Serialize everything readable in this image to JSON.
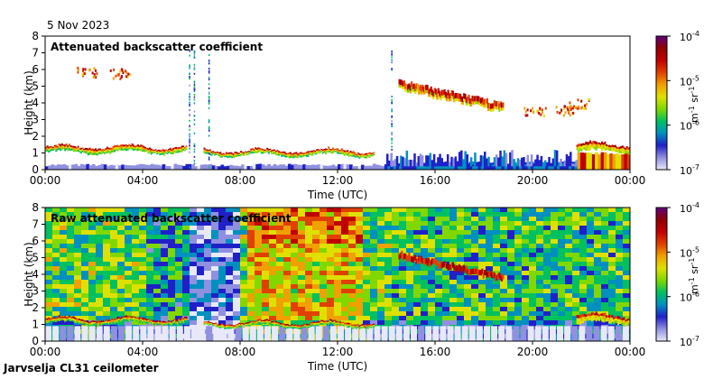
{
  "date_label": "5 Nov 2023",
  "footer": "Jarvselja CL31 ceilometer",
  "colorbar": {
    "labels": [
      "10",
      "10",
      "10",
      "10"
    ],
    "exponents": [
      "-4",
      "-5",
      "-6",
      "-7"
    ],
    "unit_m": "m",
    "unit_m_exp": "-1",
    "unit_sr": "sr",
    "unit_sr_exp": "-1",
    "stops": [
      "#e8e8f8",
      "#9090e0",
      "#2020c8",
      "#0090c0",
      "#00c060",
      "#80d800",
      "#e0e000",
      "#f0a000",
      "#e04000",
      "#c00000",
      "#900000",
      "#600080"
    ]
  },
  "chart_data": [
    {
      "type": "heatmap",
      "title": "Attenuated backscatter coefficient",
      "xlabel": "Time (UTC)",
      "ylabel": "Height (km)",
      "x_ticks": [
        "00:00",
        "04:00",
        "08:00",
        "12:00",
        "16:00",
        "20:00",
        "00:00"
      ],
      "y_ticks": [
        "0",
        "1",
        "2",
        "3",
        "4",
        "5",
        "6",
        "7",
        "8"
      ],
      "xlim_hours": [
        0,
        24
      ],
      "ylim_km": [
        0,
        8
      ],
      "colorbar_range": [
        "1e-7",
        "1e-4"
      ],
      "features": [
        {
          "desc": "boundary layer cloud",
          "x_start_h": 0.0,
          "x_end_h": 5.8,
          "y_km": 1.2
        },
        {
          "desc": "cloud layer",
          "x_start_h": 6.5,
          "x_end_h": 13.5,
          "y_km": 1.0
        },
        {
          "desc": "mid-level cloud",
          "x_start_h": 14.5,
          "x_end_h": 18.8,
          "y_km": 4.0
        },
        {
          "desc": "low cloud / precipitation",
          "x_start_h": 21.8,
          "x_end_h": 24.0,
          "y_km": 1.3
        }
      ]
    },
    {
      "type": "heatmap",
      "title": "Raw attenuated backscatter coefficient",
      "xlabel": "Time (UTC)",
      "ylabel": "Height (km)",
      "x_ticks": [
        "00:00",
        "04:00",
        "08:00",
        "12:00",
        "16:00",
        "20:00",
        "00:00"
      ],
      "y_ticks": [
        "0",
        "1",
        "2",
        "3",
        "4",
        "5",
        "6",
        "7",
        "8"
      ],
      "xlim_hours": [
        0,
        24
      ],
      "ylim_km": [
        0,
        8
      ],
      "colorbar_range": [
        "1e-7",
        "1e-4"
      ]
    }
  ]
}
